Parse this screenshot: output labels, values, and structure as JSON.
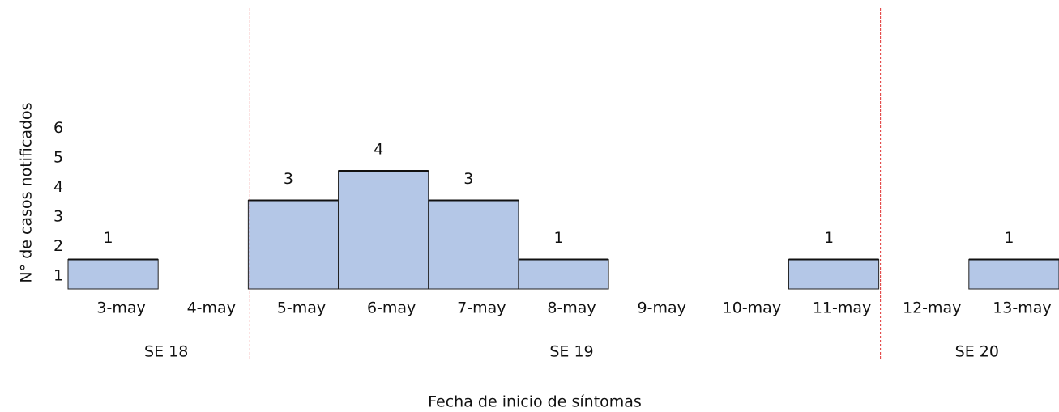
{
  "chart_data": {
    "type": "bar",
    "x_label": "Fecha de inicio de síntomas",
    "y_label": "N° de casos notificados",
    "categories": [
      "3-may",
      "4-may",
      "5-may",
      "6-may",
      "7-may",
      "8-may",
      "9-may",
      "10-may",
      "11-may",
      "12-may",
      "13-may"
    ],
    "values": [
      1,
      0,
      3,
      4,
      3,
      1,
      0,
      0,
      1,
      0,
      1
    ],
    "color": "#b4c7e7",
    "ylim": [
      0,
      6
    ],
    "yticks": [
      1,
      2,
      3,
      4,
      5,
      6
    ],
    "weeks": [
      {
        "label": "SE 18",
        "span": 2
      },
      {
        "label": "SE 19",
        "span": 7
      },
      {
        "label": "SE 20",
        "span": 2
      }
    ]
  }
}
